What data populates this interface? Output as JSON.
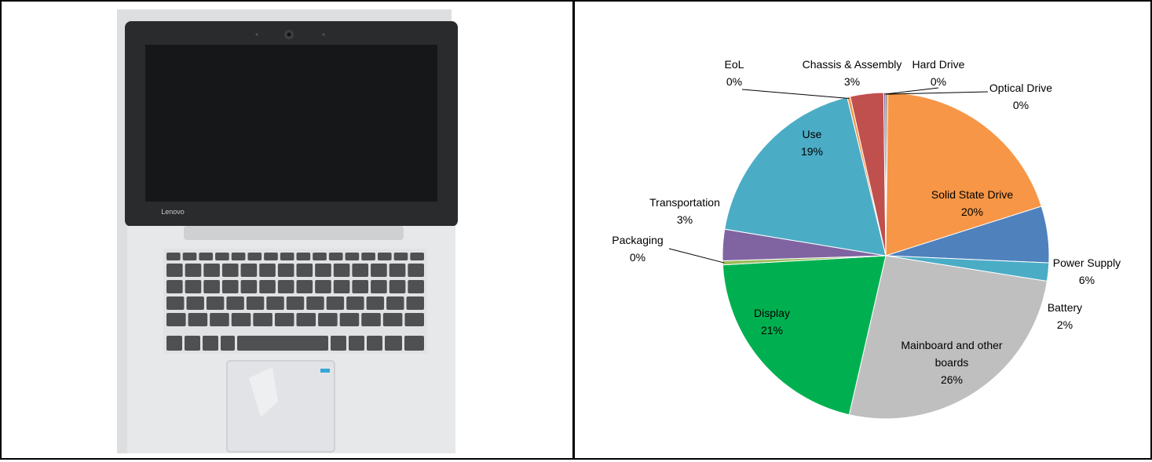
{
  "photo": {
    "laptop_brand": "Lenovo",
    "colors": {
      "background": "#dcdedf",
      "lid": "#2a2b2d",
      "screen": "#161718",
      "deck": "#e7e8ea",
      "key": "#4f5052"
    }
  },
  "chart_data": {
    "type": "pie",
    "title": "",
    "legend": "none",
    "start_angle_deg": 0,
    "direction": "clockwise",
    "slices": [
      {
        "name": "Optical Drive",
        "pct_label": "0%",
        "value": 0.2,
        "color": "#8a7b63"
      },
      {
        "name": "Solid State Drive",
        "pct_label": "20%",
        "value": 19.9,
        "color": "#f79646"
      },
      {
        "name": "Power Supply",
        "pct_label": "6%",
        "value": 5.6,
        "color": "#4f81bd"
      },
      {
        "name": "Battery",
        "pct_label": "2%",
        "value": 1.8,
        "color": "#4bacc6"
      },
      {
        "name": "Mainboard and other boards",
        "pct_label": "26%",
        "value": 26.1,
        "color": "#bfbfbf"
      },
      {
        "name": "Display",
        "pct_label": "21%",
        "value": 20.5,
        "color": "#00b050"
      },
      {
        "name": "Packaging",
        "pct_label": "0%",
        "value": 0.4,
        "color": "#9bbb59"
      },
      {
        "name": "Transportation",
        "pct_label": "3%",
        "value": 3.1,
        "color": "#8064a2"
      },
      {
        "name": "Use",
        "pct_label": "19%",
        "value": 18.6,
        "color": "#4bacc6"
      },
      {
        "name": "EoL",
        "pct_label": "0%",
        "value": 0.3,
        "color": "#f79646"
      },
      {
        "name": "Chassis & Assembly",
        "pct_label": "3%",
        "value": 3.3,
        "color": "#c0504d"
      },
      {
        "name": "Hard Drive",
        "pct_label": "0%",
        "value": 0.2,
        "color": "#8064a2"
      }
    ]
  }
}
